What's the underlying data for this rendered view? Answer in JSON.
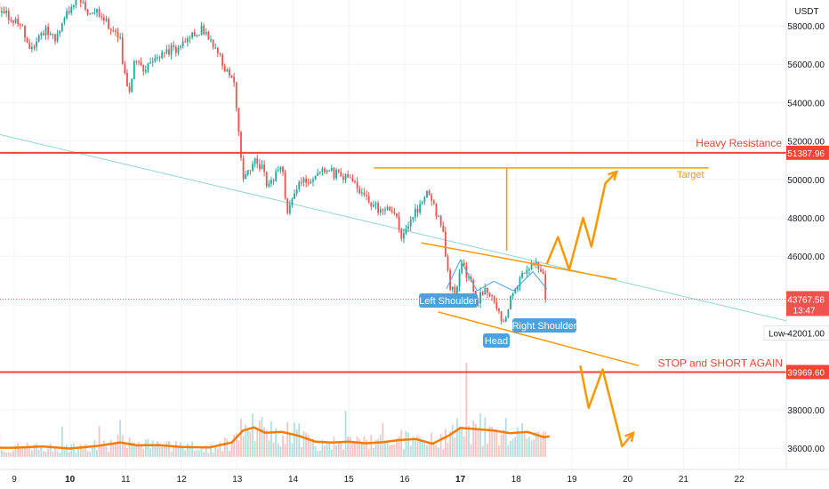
{
  "chart_data": {
    "type": "candlestick",
    "currency_label": "USDT",
    "x_ticks": [
      {
        "day": 9,
        "label": "9",
        "bold": false
      },
      {
        "day": 10,
        "label": "10",
        "bold": true
      },
      {
        "day": 11,
        "label": "11",
        "bold": false
      },
      {
        "day": 12,
        "label": "12",
        "bold": false
      },
      {
        "day": 13,
        "label": "13",
        "bold": false
      },
      {
        "day": 14,
        "label": "14",
        "bold": false
      },
      {
        "day": 15,
        "label": "15",
        "bold": false
      },
      {
        "day": 16,
        "label": "16",
        "bold": false
      },
      {
        "day": 17,
        "label": "17",
        "bold": true
      },
      {
        "day": 18,
        "label": "18",
        "bold": false
      },
      {
        "day": 19,
        "label": "19",
        "bold": false
      },
      {
        "day": 20,
        "label": "20",
        "bold": false
      },
      {
        "day": 21,
        "label": "21",
        "bold": false
      },
      {
        "day": 22,
        "label": "22",
        "bold": false
      }
    ],
    "y_ticks": [
      {
        "value": 58000,
        "label": "58000.00"
      },
      {
        "value": 56000,
        "label": "56000.00"
      },
      {
        "value": 54000,
        "label": "54000.00"
      },
      {
        "value": 52000,
        "label": "52000.00"
      },
      {
        "value": 50000,
        "label": "50000.00"
      },
      {
        "value": 48000,
        "label": "48000.00"
      },
      {
        "value": 46000,
        "label": "46000.00"
      },
      {
        "value": 38000,
        "label": "38000.00"
      },
      {
        "value": 36000,
        "label": "36000.00"
      }
    ],
    "price_path": [
      [
        8.65,
        59200
      ],
      [
        8.85,
        58600
      ],
      [
        9.1,
        58200
      ],
      [
        9.3,
        56600
      ],
      [
        9.55,
        57800
      ],
      [
        9.75,
        57200
      ],
      [
        9.95,
        58600
      ],
      [
        10.1,
        59500
      ],
      [
        10.3,
        58800
      ],
      [
        10.55,
        58700
      ],
      [
        10.75,
        57600
      ],
      [
        10.9,
        57200
      ],
      [
        10.95,
        55900
      ],
      [
        11.05,
        54300
      ],
      [
        11.15,
        56200
      ],
      [
        11.35,
        55800
      ],
      [
        11.55,
        56300
      ],
      [
        11.75,
        56700
      ],
      [
        11.9,
        56800
      ],
      [
        12.05,
        57300
      ],
      [
        12.2,
        57600
      ],
      [
        12.4,
        57800
      ],
      [
        12.55,
        57100
      ],
      [
        12.7,
        56200
      ],
      [
        12.8,
        55600
      ],
      [
        12.95,
        54900
      ],
      [
        13.0,
        53500
      ],
      [
        13.05,
        51500
      ],
      [
        13.1,
        50200
      ],
      [
        13.2,
        50600
      ],
      [
        13.35,
        51000
      ],
      [
        13.45,
        50500
      ],
      [
        13.55,
        49500
      ],
      [
        13.7,
        50400
      ],
      [
        13.8,
        50800
      ],
      [
        13.9,
        48000
      ],
      [
        14.0,
        49300
      ],
      [
        14.2,
        49900
      ],
      [
        14.4,
        50200
      ],
      [
        14.55,
        50500
      ],
      [
        14.75,
        50300
      ],
      [
        14.95,
        50100
      ],
      [
        15.1,
        49800
      ],
      [
        15.25,
        49000
      ],
      [
        15.45,
        48700
      ],
      [
        15.6,
        48300
      ],
      [
        15.8,
        48500
      ],
      [
        15.95,
        46800
      ],
      [
        16.1,
        47800
      ],
      [
        16.3,
        48900
      ],
      [
        16.45,
        49300
      ],
      [
        16.55,
        48400
      ],
      [
        16.7,
        47000
      ],
      [
        16.8,
        44600
      ],
      [
        16.9,
        44000
      ],
      [
        17.0,
        45600
      ],
      [
        17.15,
        44900
      ],
      [
        17.3,
        43500
      ],
      [
        17.45,
        44500
      ],
      [
        17.6,
        43800
      ],
      [
        17.75,
        42400
      ],
      [
        17.9,
        43800
      ],
      [
        18.05,
        44700
      ],
      [
        18.25,
        45400
      ],
      [
        18.4,
        45500
      ],
      [
        18.5,
        45000
      ],
      [
        18.55,
        43767.58
      ]
    ],
    "last_price": {
      "value": 43767.58,
      "label": "43767.58",
      "countdown": "13:47"
    },
    "low_marker": {
      "value": 42001.0,
      "label_prefix": "Low",
      "label": "42001.00"
    },
    "resistance": {
      "value": 51387.96,
      "label": "51387.96",
      "text": "Heavy Resistance"
    },
    "stop": {
      "value": 39969.6,
      "label": "39969.60",
      "text": "STOP and SHORT AGAIN"
    },
    "target": {
      "value": 50600,
      "text": "Target",
      "from_day": 15.45,
      "to_day": 21.45,
      "measure_day": 17.83
    },
    "head_and_shoulders": {
      "left_shoulder": "Left Shoulder",
      "head": "Head",
      "right_shoulder": "Right Shoulder"
    },
    "trend_line": [
      [
        8.65,
        52400
      ],
      [
        22.9,
        42600
      ]
    ],
    "channel_upper": [
      [
        16.3,
        46700
      ],
      [
        19.8,
        44800
      ]
    ],
    "channel_lower": [
      [
        16.6,
        43100
      ],
      [
        20.2,
        40300
      ]
    ],
    "neckline_wave": [
      [
        16.75,
        44300
      ],
      [
        17.0,
        45800
      ],
      [
        17.3,
        44200
      ],
      [
        17.6,
        44700
      ],
      [
        17.95,
        44200
      ],
      [
        18.3,
        45200
      ],
      [
        18.55,
        44300
      ]
    ],
    "scenario_up": [
      [
        18.55,
        45600
      ],
      [
        18.75,
        47000
      ],
      [
        18.95,
        45300
      ],
      [
        19.2,
        48000
      ],
      [
        19.35,
        46500
      ],
      [
        19.6,
        49800
      ],
      [
        19.8,
        50400
      ]
    ],
    "scenario_down": [
      [
        19.15,
        40300
      ],
      [
        19.3,
        38100
      ],
      [
        19.55,
        40100
      ],
      [
        19.9,
        36100
      ],
      [
        20.1,
        36800
      ]
    ],
    "volume_ma": [
      [
        8.65,
        0.35
      ],
      [
        9.0,
        0.35
      ],
      [
        9.5,
        0.4
      ],
      [
        10.0,
        0.32
      ],
      [
        10.5,
        0.42
      ],
      [
        10.9,
        0.55
      ],
      [
        11.2,
        0.44
      ],
      [
        11.6,
        0.45
      ],
      [
        12.0,
        0.38
      ],
      [
        12.5,
        0.36
      ],
      [
        12.9,
        0.55
      ],
      [
        13.1,
        1.0
      ],
      [
        13.3,
        1.12
      ],
      [
        13.5,
        0.92
      ],
      [
        13.8,
        0.95
      ],
      [
        14.1,
        0.8
      ],
      [
        14.4,
        0.58
      ],
      [
        14.7,
        0.55
      ],
      [
        15.0,
        0.58
      ],
      [
        15.3,
        0.52
      ],
      [
        15.6,
        0.56
      ],
      [
        15.9,
        0.64
      ],
      [
        16.2,
        0.68
      ],
      [
        16.5,
        0.5
      ],
      [
        16.8,
        0.82
      ],
      [
        17.0,
        1.1
      ],
      [
        17.3,
        1.05
      ],
      [
        17.6,
        1.0
      ],
      [
        17.9,
        0.9
      ],
      [
        18.2,
        0.95
      ],
      [
        18.5,
        0.75
      ],
      [
        18.6,
        0.78
      ]
    ],
    "colors": {
      "up": "#26a69a",
      "down": "#ef5350",
      "resistance": "#f44336",
      "orange": "#ff9800",
      "pattern": "#4aa3df",
      "volume_ma": "#f57c00",
      "trend": "#8fd3d6"
    }
  }
}
